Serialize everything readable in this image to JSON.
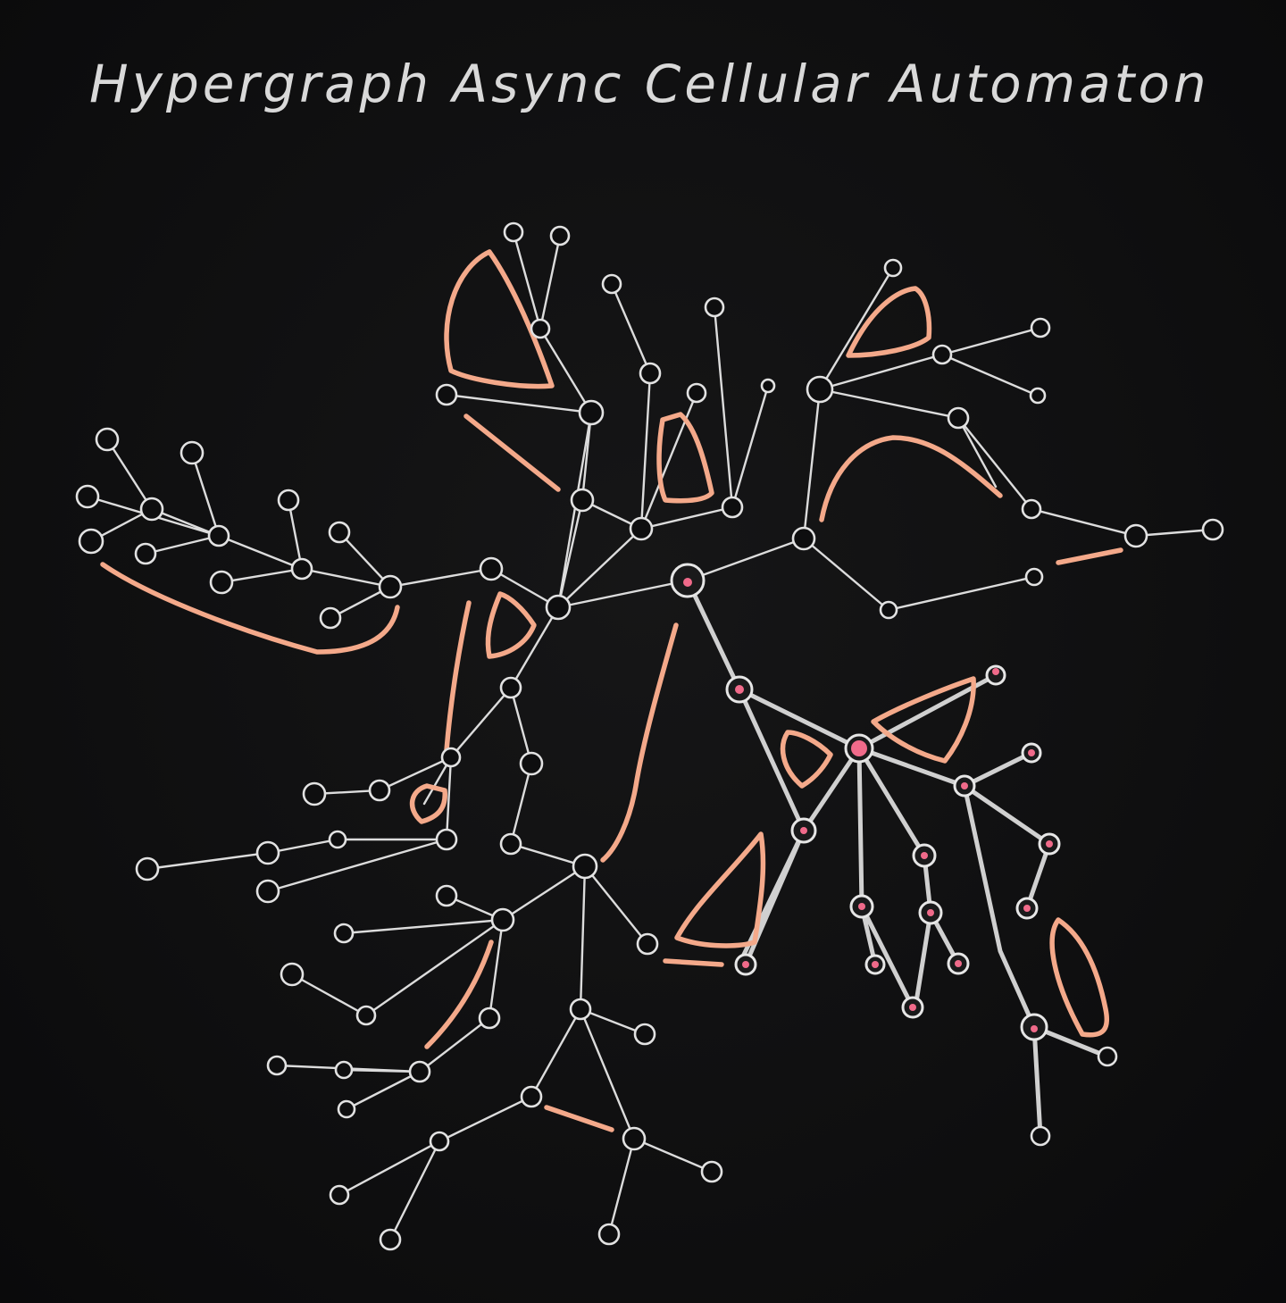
{
  "title": "Hypergraph Async Cellular Automaton",
  "colors": {
    "background": "#0e0e0f",
    "edge": "#dcdcdc",
    "hyperedge": "#f4a98a",
    "active_node_core": "#f06a8a"
  }
}
